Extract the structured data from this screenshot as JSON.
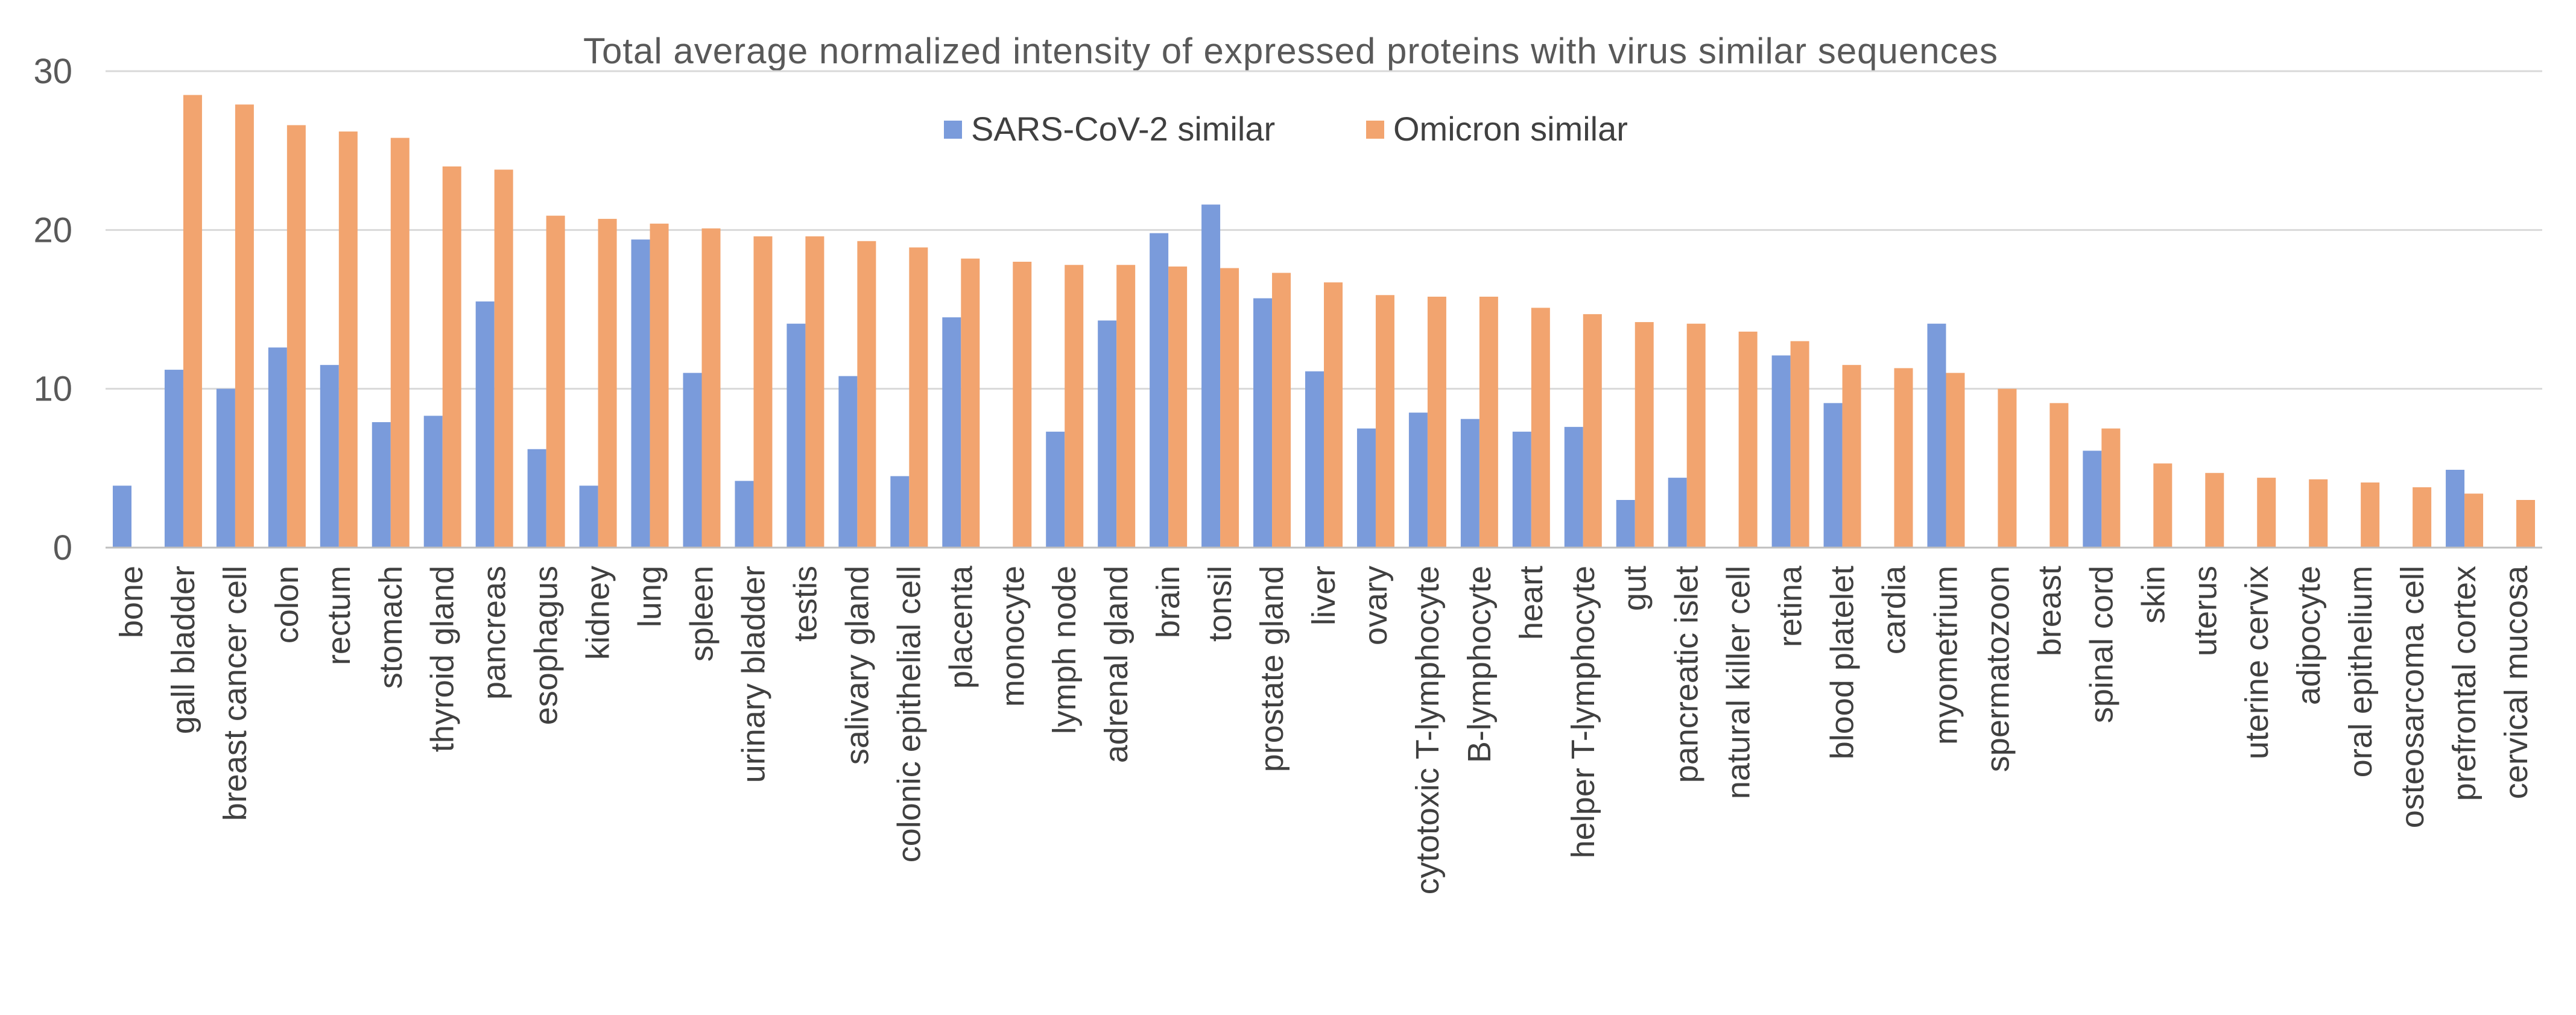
{
  "chart_data": {
    "type": "bar",
    "title": "Total average normalized intensity of expressed proteins with virus similar sequences",
    "xlabel": "",
    "ylabel": "",
    "ylim": [
      0,
      30
    ],
    "yticks": [
      0,
      10,
      20,
      30
    ],
    "grid": true,
    "legend_position": "top",
    "categories": [
      "bone",
      "gall bladder",
      "breast cancer cell",
      "colon",
      "rectum",
      "stomach",
      "thyroid gland",
      "pancreas",
      "esophagus",
      "kidney",
      "lung",
      "spleen",
      "urinary bladder",
      "testis",
      "salivary gland",
      "colonic epithelial cell",
      "placenta",
      "monocyte",
      "lymph node",
      "adrenal gland",
      "brain",
      "tonsil",
      "prostate gland",
      "liver",
      "ovary",
      "cytotoxic T-lymphocyte",
      "B-lymphocyte",
      "heart",
      "helper T-lymphocyte",
      "gut",
      "pancreatic islet",
      "natural killer cell",
      "retina",
      "blood platelet",
      "cardia",
      "myometrium",
      "spermatozoon",
      "breast",
      "spinal cord",
      "skin",
      "uterus",
      "uterine cervix",
      "adipocyte",
      "oral epithelium",
      "osteosarcoma cell",
      "prefrontal cortex",
      "cervical mucosa"
    ],
    "series": [
      {
        "name": "SARS-CoV-2 similar",
        "color": "#7A9BDB",
        "values": [
          3.9,
          11.2,
          10.0,
          12.6,
          11.5,
          7.9,
          8.3,
          15.5,
          6.2,
          3.9,
          19.4,
          11.0,
          4.2,
          14.1,
          10.8,
          4.5,
          14.5,
          0,
          7.3,
          14.3,
          19.8,
          21.6,
          15.7,
          11.1,
          7.5,
          8.5,
          8.1,
          7.3,
          7.6,
          3.0,
          4.4,
          0,
          12.1,
          9.1,
          0,
          14.1,
          0,
          0,
          6.1,
          0,
          0,
          0,
          0,
          0,
          0,
          4.9,
          0
        ]
      },
      {
        "name": "Omicron similar",
        "color": "#F2A46F",
        "values": [
          0,
          28.5,
          27.9,
          26.6,
          26.2,
          25.8,
          24.0,
          23.8,
          20.9,
          20.7,
          20.4,
          20.1,
          19.6,
          19.6,
          19.3,
          18.9,
          18.2,
          18.0,
          17.8,
          17.8,
          17.7,
          17.6,
          17.3,
          16.7,
          15.9,
          15.8,
          15.8,
          15.1,
          14.7,
          14.2,
          14.1,
          13.6,
          13.0,
          11.5,
          11.3,
          11.0,
          10.0,
          9.1,
          7.5,
          5.3,
          4.7,
          4.4,
          4.3,
          4.1,
          3.8,
          3.4,
          3.0
        ]
      }
    ]
  }
}
